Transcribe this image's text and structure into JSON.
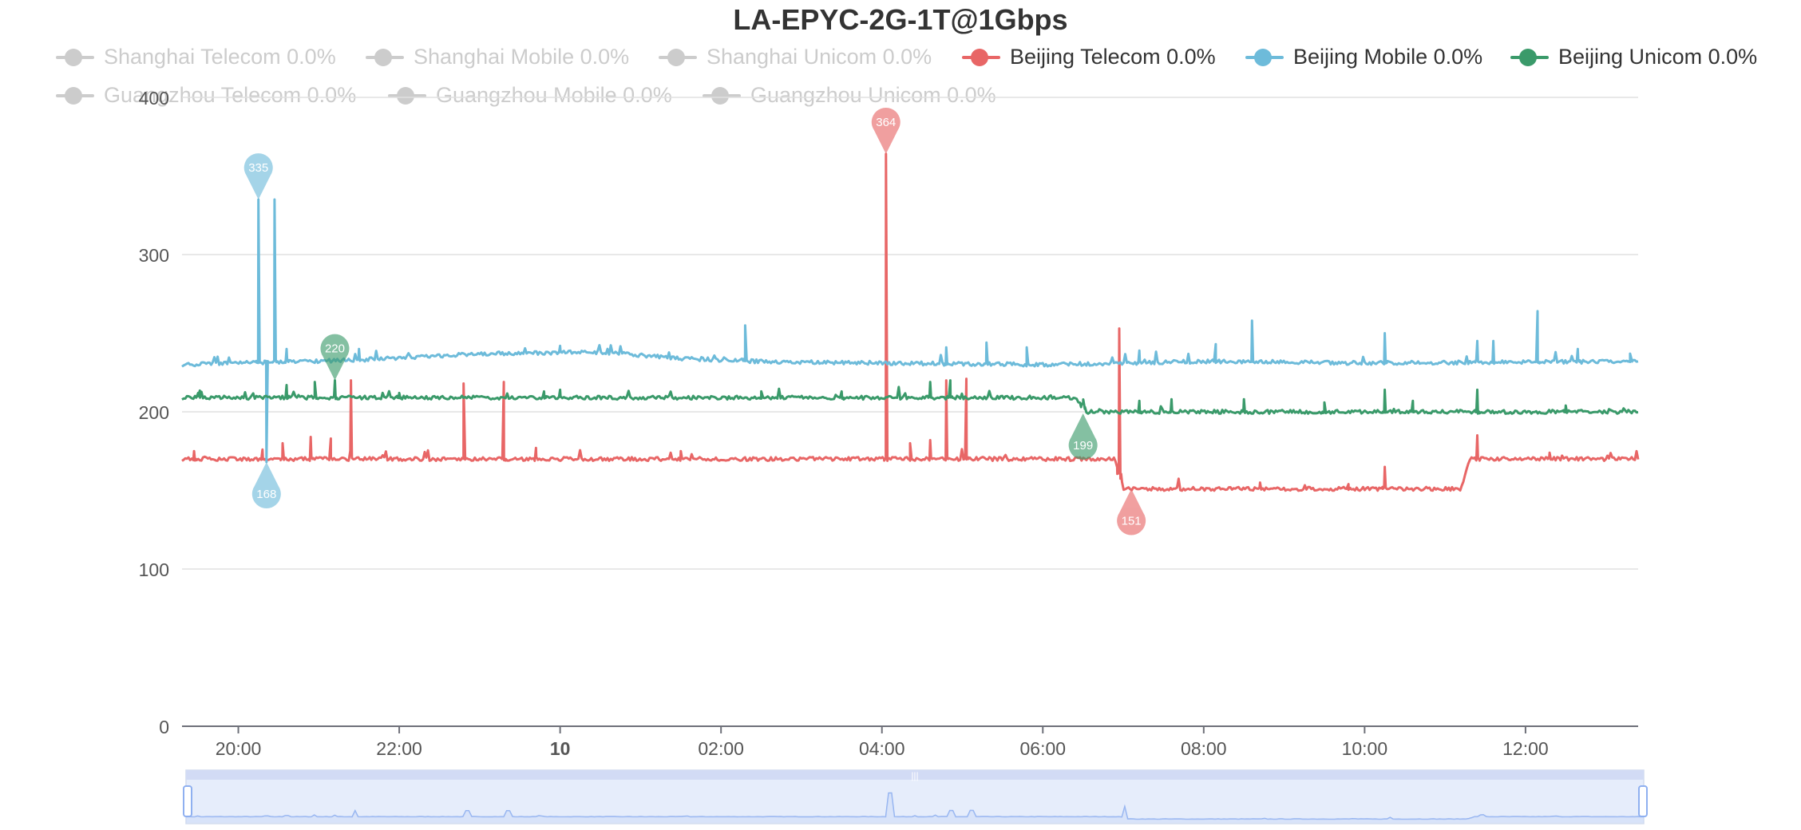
{
  "chart_data": {
    "type": "line",
    "title": "LA-EPYC-2G-1T@1Gbps",
    "ylim": [
      0,
      400
    ],
    "y_ticks": [
      "0",
      "100",
      "200",
      "300",
      "400"
    ],
    "x_ticks": [
      "20:00",
      "22:00",
      "10",
      "02:00",
      "04:00",
      "06:00",
      "08:00",
      "10:00",
      "12:00"
    ],
    "x_range_hours": [
      19.3,
      13.4
    ],
    "grid": true,
    "legend_position": "top",
    "legend": [
      {
        "name": "Shanghai Telecom 0.0%",
        "color": "#cccccc",
        "active": false
      },
      {
        "name": "Shanghai Mobile 0.0%",
        "color": "#cccccc",
        "active": false
      },
      {
        "name": "Shanghai Unicom 0.0%",
        "color": "#cccccc",
        "active": false
      },
      {
        "name": "Beijing Telecom 0.0%",
        "color": "#e86666",
        "active": true
      },
      {
        "name": "Beijing Mobile 0.0%",
        "color": "#6dbbda",
        "active": true
      },
      {
        "name": "Beijing Unicom 0.0%",
        "color": "#3a9a6a",
        "active": true
      },
      {
        "name": "Guangzhou Telecom 0.0%",
        "color": "#cccccc",
        "active": false
      },
      {
        "name": "Guangzhou Mobile 0.0%",
        "color": "#cccccc",
        "active": false
      },
      {
        "name": "Guangzhou Unicom 0.0%",
        "color": "#cccccc",
        "active": false
      }
    ],
    "series": [
      {
        "name": "Beijing Telecom 0.0%",
        "color": "#e86666",
        "baseline": [
          [
            19.3,
            170
          ],
          [
            6.9,
            170
          ],
          [
            7.0,
            151
          ],
          [
            11.2,
            151
          ],
          [
            11.3,
            170
          ],
          [
            13.4,
            170
          ]
        ],
        "spikes": [
          [
            19.45,
            175
          ],
          [
            20.3,
            176
          ],
          [
            20.55,
            180
          ],
          [
            20.9,
            184
          ],
          [
            21.15,
            183
          ],
          [
            21.4,
            220
          ],
          [
            22.8,
            218
          ],
          [
            23.3,
            219
          ],
          [
            23.7,
            177
          ],
          [
            1.5,
            175
          ],
          [
            4.05,
            364
          ],
          [
            4.35,
            180
          ],
          [
            4.6,
            182
          ],
          [
            4.8,
            220
          ],
          [
            5.05,
            221
          ],
          [
            6.95,
            253
          ],
          [
            8.7,
            155
          ],
          [
            9.8,
            154
          ],
          [
            10.25,
            165
          ],
          [
            11.4,
            185
          ],
          [
            12.3,
            174
          ]
        ],
        "markers": [
          {
            "label": "364",
            "x": 4.05,
            "y": 364,
            "type": "max"
          },
          {
            "label": "151",
            "x": 7.1,
            "y": 151,
            "type": "min"
          }
        ]
      },
      {
        "name": "Beijing Mobile 0.0%",
        "color": "#6dbbda",
        "baseline": [
          [
            19.3,
            230
          ],
          [
            21.5,
            233
          ],
          [
            23.0,
            237
          ],
          [
            0.5,
            238
          ],
          [
            1.5,
            234
          ],
          [
            2.5,
            232
          ],
          [
            4.0,
            231
          ],
          [
            6.0,
            230
          ],
          [
            8.0,
            232
          ],
          [
            10.0,
            231
          ],
          [
            13.4,
            232
          ]
        ],
        "spikes": [
          [
            20.25,
            335
          ],
          [
            20.45,
            335
          ],
          [
            20.6,
            240
          ],
          [
            21.5,
            240
          ],
          [
            0.0,
            242
          ],
          [
            2.3,
            255
          ],
          [
            4.8,
            241
          ],
          [
            5.3,
            244
          ],
          [
            5.8,
            241
          ],
          [
            7.2,
            239
          ],
          [
            8.15,
            243
          ],
          [
            8.6,
            258
          ],
          [
            10.25,
            250
          ],
          [
            11.4,
            245
          ],
          [
            11.6,
            245
          ],
          [
            12.15,
            264
          ],
          [
            12.65,
            240
          ],
          [
            13.3,
            237
          ]
        ],
        "dips": [
          [
            20.35,
            168
          ]
        ],
        "markers": [
          {
            "label": "335",
            "x": 20.25,
            "y": 335,
            "type": "max"
          },
          {
            "label": "168",
            "x": 20.35,
            "y": 168,
            "type": "min"
          }
        ]
      },
      {
        "name": "Beijing Unicom 0.0%",
        "color": "#3a9a6a",
        "baseline": [
          [
            19.3,
            209
          ],
          [
            6.4,
            209
          ],
          [
            6.55,
            200
          ],
          [
            13.4,
            200
          ]
        ],
        "spikes": [
          [
            19.5,
            212
          ],
          [
            20.6,
            217
          ],
          [
            20.95,
            219
          ],
          [
            21.2,
            220
          ],
          [
            22.0,
            212
          ],
          [
            23.8,
            213
          ],
          [
            0.0,
            214
          ],
          [
            2.5,
            213
          ],
          [
            3.5,
            213
          ],
          [
            4.6,
            219
          ],
          [
            4.85,
            220
          ],
          [
            6.5,
            205
          ],
          [
            7.2,
            207
          ],
          [
            7.6,
            208
          ],
          [
            8.5,
            208
          ],
          [
            9.5,
            206
          ],
          [
            10.25,
            214
          ],
          [
            10.6,
            207
          ],
          [
            11.4,
            214
          ],
          [
            12.5,
            204
          ]
        ],
        "markers": [
          {
            "label": "220",
            "x": 21.2,
            "y": 220,
            "type": "max"
          },
          {
            "label": "199",
            "x": 6.5,
            "y": 199,
            "type": "min"
          }
        ]
      }
    ]
  }
}
